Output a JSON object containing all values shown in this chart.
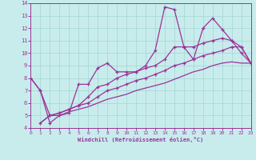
{
  "background_color": "#c8ecec",
  "grid_color": "#a8d8d8",
  "line_color": "#993399",
  "xlabel": "Windchill (Refroidissement éolien,°C)",
  "xlim": [
    0,
    23
  ],
  "ylim": [
    4,
    14
  ],
  "xticks": [
    0,
    1,
    2,
    3,
    4,
    5,
    6,
    7,
    8,
    9,
    10,
    11,
    12,
    13,
    14,
    15,
    16,
    17,
    18,
    19,
    20,
    21,
    22,
    23
  ],
  "yticks": [
    4,
    5,
    6,
    7,
    8,
    9,
    10,
    11,
    12,
    13,
    14
  ],
  "series_zigzag": [
    8.0,
    7.0,
    4.4,
    5.0,
    5.2,
    7.5,
    7.5,
    8.8,
    9.2,
    8.5,
    8.5,
    8.5,
    9.0,
    10.2,
    13.7,
    13.5,
    10.5,
    9.5,
    12.0,
    12.8,
    11.9,
    11.0,
    10.0,
    9.2
  ],
  "series_mid_upper": [
    8.0,
    7.0,
    5.0,
    5.2,
    5.5,
    5.8,
    6.5,
    7.3,
    7.5,
    8.0,
    8.3,
    8.5,
    8.8,
    9.0,
    9.5,
    10.5,
    10.5,
    10.5,
    10.8,
    11.0,
    11.2,
    11.0,
    10.5,
    9.2
  ],
  "series_mid_lower": [
    8.0,
    4.4,
    5.0,
    5.2,
    5.5,
    5.8,
    6.0,
    6.5,
    7.0,
    7.2,
    7.5,
    7.8,
    8.0,
    8.3,
    8.6,
    9.0,
    9.2,
    9.5,
    9.8,
    10.0,
    10.2,
    10.5,
    10.5,
    9.2
  ],
  "series_bottom": [
    8.0,
    4.4,
    5.0,
    5.0,
    5.3,
    5.5,
    5.7,
    6.0,
    6.3,
    6.5,
    6.7,
    7.0,
    7.2,
    7.4,
    7.6,
    7.9,
    8.2,
    8.5,
    8.7,
    9.0,
    9.2,
    9.3,
    9.2,
    9.2
  ]
}
